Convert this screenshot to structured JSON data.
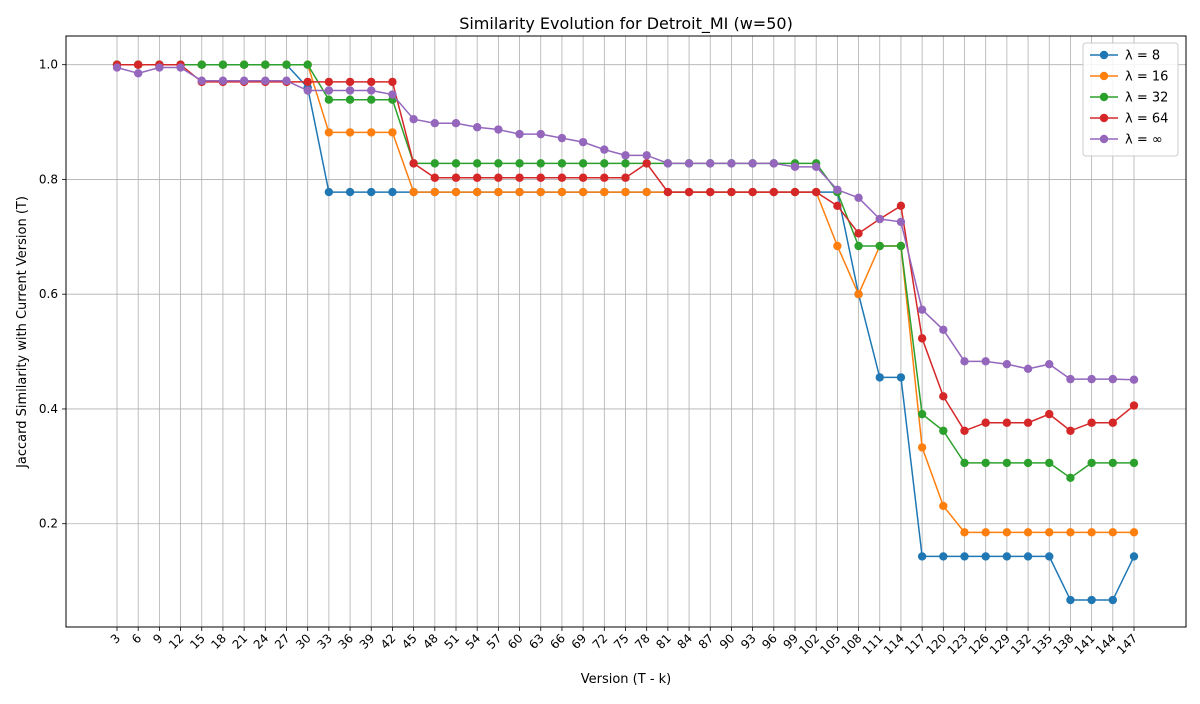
{
  "chart_data": {
    "type": "line",
    "title": "Similarity Evolution for Detroit_MI (w=50)",
    "xlabel": "Version (T - k)",
    "ylabel": "Jaccard Similarity with Current Version (T)",
    "x": [
      3,
      6,
      9,
      12,
      15,
      18,
      21,
      24,
      27,
      30,
      33,
      36,
      39,
      42,
      45,
      48,
      51,
      54,
      57,
      60,
      63,
      66,
      69,
      72,
      75,
      78,
      81,
      84,
      87,
      90,
      93,
      96,
      99,
      102,
      105,
      108,
      111,
      114,
      117,
      120,
      123,
      126,
      129,
      132,
      135,
      138,
      141,
      144,
      147
    ],
    "ylim": [
      0.02,
      1.05
    ],
    "yticks": [
      0.2,
      0.4,
      0.6,
      0.8,
      1.0
    ],
    "ytick_labels": [
      "0.2",
      "0.4",
      "0.6",
      "0.8",
      "1.0"
    ],
    "grid": true,
    "legend_position": "top-right",
    "series": [
      {
        "name": "λ = 8",
        "color": "#1f77b4",
        "values": [
          1.0,
          1.0,
          1.0,
          1.0,
          1.0,
          1.0,
          1.0,
          1.0,
          1.0,
          0.96,
          0.778,
          0.778,
          0.778,
          0.778,
          0.778,
          0.778,
          0.778,
          0.778,
          0.778,
          0.778,
          0.778,
          0.778,
          0.778,
          0.778,
          0.778,
          0.778,
          0.778,
          0.778,
          0.778,
          0.778,
          0.778,
          0.778,
          0.778,
          0.778,
          0.778,
          0.6,
          0.455,
          0.455,
          0.143,
          0.143,
          0.143,
          0.143,
          0.143,
          0.143,
          0.143,
          0.067,
          0.067,
          0.067,
          0.143
        ]
      },
      {
        "name": "λ = 16",
        "color": "#ff7f0e",
        "values": [
          1.0,
          1.0,
          1.0,
          1.0,
          1.0,
          1.0,
          1.0,
          1.0,
          1.0,
          1.0,
          0.882,
          0.882,
          0.882,
          0.882,
          0.778,
          0.778,
          0.778,
          0.778,
          0.778,
          0.778,
          0.778,
          0.778,
          0.778,
          0.778,
          0.778,
          0.778,
          0.778,
          0.778,
          0.778,
          0.778,
          0.778,
          0.778,
          0.778,
          0.778,
          0.684,
          0.6,
          0.684,
          0.684,
          0.333,
          0.231,
          0.185,
          0.185,
          0.185,
          0.185,
          0.185,
          0.185,
          0.185,
          0.185,
          0.185
        ]
      },
      {
        "name": "λ = 32",
        "color": "#2ca02c",
        "values": [
          1.0,
          1.0,
          1.0,
          1.0,
          1.0,
          1.0,
          1.0,
          1.0,
          1.0,
          1.0,
          0.939,
          0.939,
          0.939,
          0.939,
          0.828,
          0.828,
          0.828,
          0.828,
          0.828,
          0.828,
          0.828,
          0.828,
          0.828,
          0.828,
          0.828,
          0.828,
          0.828,
          0.828,
          0.828,
          0.828,
          0.828,
          0.828,
          0.828,
          0.828,
          0.778,
          0.684,
          0.684,
          0.684,
          0.391,
          0.362,
          0.306,
          0.306,
          0.306,
          0.306,
          0.306,
          0.28,
          0.306,
          0.306,
          0.306
        ]
      },
      {
        "name": "λ = 64",
        "color": "#d62728",
        "values": [
          1.0,
          1.0,
          1.0,
          1.0,
          0.97,
          0.97,
          0.97,
          0.97,
          0.97,
          0.97,
          0.97,
          0.97,
          0.97,
          0.97,
          0.828,
          0.803,
          0.803,
          0.803,
          0.803,
          0.803,
          0.803,
          0.803,
          0.803,
          0.803,
          0.803,
          0.828,
          0.778,
          0.778,
          0.778,
          0.778,
          0.778,
          0.778,
          0.778,
          0.778,
          0.754,
          0.706,
          0.731,
          0.754,
          0.523,
          0.422,
          0.362,
          0.376,
          0.376,
          0.376,
          0.391,
          0.362,
          0.376,
          0.376,
          0.406
        ]
      },
      {
        "name": "λ = ∞",
        "color": "#9467bd",
        "values": [
          0.995,
          0.985,
          0.995,
          0.995,
          0.972,
          0.972,
          0.972,
          0.972,
          0.972,
          0.955,
          0.955,
          0.955,
          0.955,
          0.948,
          0.905,
          0.898,
          0.898,
          0.891,
          0.887,
          0.879,
          0.879,
          0.872,
          0.865,
          0.852,
          0.842,
          0.842,
          0.828,
          0.828,
          0.828,
          0.828,
          0.828,
          0.828,
          0.822,
          0.822,
          0.782,
          0.768,
          0.731,
          0.726,
          0.573,
          0.538,
          0.483,
          0.483,
          0.478,
          0.47,
          0.478,
          0.452,
          0.452,
          0.452,
          0.451
        ]
      }
    ]
  }
}
